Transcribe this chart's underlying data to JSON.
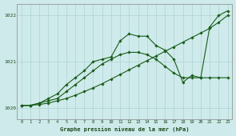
{
  "title": "Graphe pression niveau de la mer (hPa)",
  "background_color": "#ceeaea",
  "grid_color": "#aed4d4",
  "line_color": "#1a5c1a",
  "xlim": [
    -0.5,
    23.5
  ],
  "ylim": [
    1019.75,
    1022.25
  ],
  "yticks": [
    1020,
    1021,
    1022
  ],
  "xticks": [
    0,
    1,
    2,
    3,
    4,
    5,
    6,
    7,
    8,
    9,
    10,
    11,
    12,
    13,
    14,
    15,
    16,
    17,
    18,
    19,
    20,
    21,
    22,
    23
  ],
  "hours": [
    0,
    1,
    2,
    3,
    4,
    5,
    6,
    7,
    8,
    9,
    10,
    11,
    12,
    13,
    14,
    15,
    16,
    17,
    18,
    19,
    20,
    21,
    22,
    23
  ],
  "series_straight": [
    1020.05,
    1020.05,
    1020.07,
    1020.1,
    1020.15,
    1020.2,
    1020.27,
    1020.35,
    1020.43,
    1020.52,
    1020.62,
    1020.72,
    1020.82,
    1020.92,
    1021.02,
    1021.12,
    1021.22,
    1021.32,
    1021.42,
    1021.52,
    1021.62,
    1021.72,
    1021.85,
    1022.0
  ],
  "series_mid": [
    1020.05,
    1020.05,
    1020.1,
    1020.15,
    1020.2,
    1020.35,
    1020.5,
    1020.65,
    1020.8,
    1020.95,
    1021.05,
    1021.15,
    1021.2,
    1021.2,
    1021.15,
    1021.05,
    1020.9,
    1020.75,
    1020.65,
    1020.65,
    1020.65,
    1020.65,
    1020.65,
    1020.65
  ],
  "series_volatile": [
    1020.05,
    1020.05,
    1020.1,
    1020.2,
    1020.3,
    1020.5,
    1020.65,
    1020.8,
    1021.0,
    1021.05,
    1021.1,
    1021.45,
    1021.6,
    1021.55,
    1021.55,
    1021.35,
    1021.25,
    1021.05,
    1020.55,
    1020.7,
    1020.65,
    1021.75,
    1022.0,
    1022.1
  ]
}
